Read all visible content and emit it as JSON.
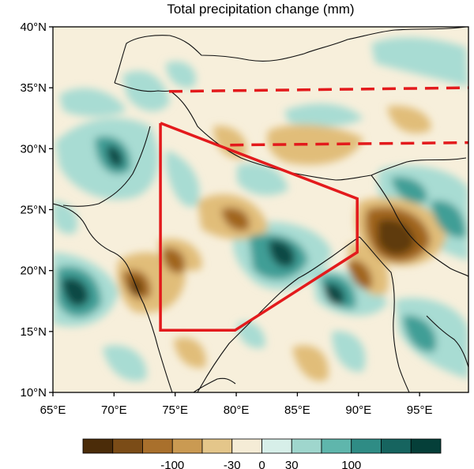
{
  "title": "Total precipitation change (mm)",
  "map": {
    "lon_range": [
      65,
      99
    ],
    "lat_range": [
      10,
      40
    ],
    "x_ticks": [
      {
        "value": 65,
        "label": "65°E"
      },
      {
        "value": 70,
        "label": "70°E"
      },
      {
        "value": 75,
        "label": "75°E"
      },
      {
        "value": 80,
        "label": "80°E"
      },
      {
        "value": 85,
        "label": "85°E"
      },
      {
        "value": 90,
        "label": "90°E"
      },
      {
        "value": 95,
        "label": "95°E"
      }
    ],
    "y_ticks": [
      {
        "value": 40,
        "label": "40°N"
      },
      {
        "value": 35,
        "label": "35°N"
      },
      {
        "value": 30,
        "label": "30°N"
      },
      {
        "value": 25,
        "label": "25°N"
      },
      {
        "value": 20,
        "label": "20°N"
      },
      {
        "value": 15,
        "label": "15°N"
      },
      {
        "value": 10,
        "label": "10°N"
      }
    ],
    "region_polygon": [
      [
        73.8,
        32.1
      ],
      [
        89.9,
        25.9
      ],
      [
        89.9,
        21.5
      ],
      [
        79.9,
        15.1
      ],
      [
        73.8,
        15.1
      ],
      [
        73.8,
        32.1
      ]
    ],
    "dashed_lines": [
      [
        [
          74.5,
          34.7
        ],
        [
          99,
          35.0
        ]
      ],
      [
        [
          79.5,
          30.3
        ],
        [
          99,
          30.5
        ]
      ]
    ],
    "colors": {
      "neg3": "#5e3a0f",
      "neg2": "#a0651f",
      "neg1": "#e1bd79",
      "neutral": "#f7efdb",
      "pos1": "#a8dcd3",
      "pos2": "#3f9e96",
      "pos3": "#0d4a44",
      "polygon": "#e31a1c",
      "coast": "#111111"
    }
  },
  "colorbar": {
    "colors": [
      "#4b2c09",
      "#7b4c17",
      "#a9702c",
      "#ca9a52",
      "#e4c68a",
      "#f5ecd6",
      "#d7efe9",
      "#9fd6cd",
      "#5fb6ac",
      "#2f8c85",
      "#16645f",
      "#053f39"
    ],
    "labels": [
      "-100",
      "-30",
      "0",
      "30",
      "100"
    ]
  }
}
